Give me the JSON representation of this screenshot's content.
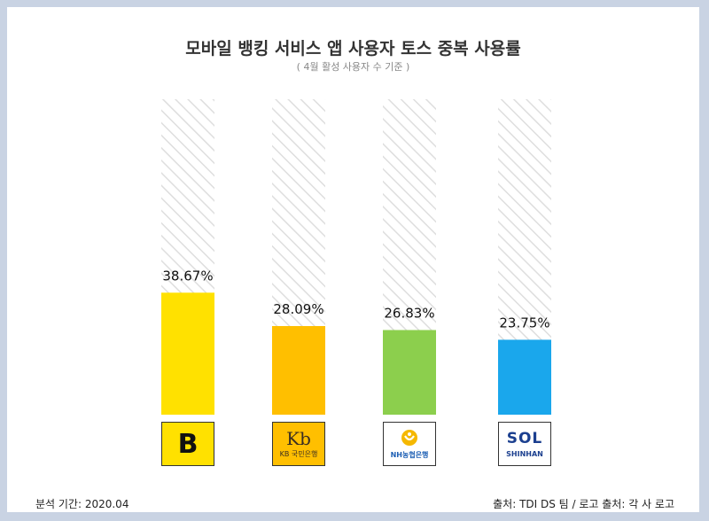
{
  "header": {
    "title": "모바일 뱅킹 서비스 앱 사용자 토스 중복 사용률",
    "subtitle": "( 4월 활성 사용자 수 기준 )"
  },
  "footer": {
    "period": "분석 기간: 2020.04",
    "source": "출처: TDI DS 팀 / 로고 출처: 각 사 로고"
  },
  "chart_data": {
    "type": "bar",
    "title": "모바일 뱅킹 서비스 앱 사용자 토스 중복 사용률",
    "subtitle": "( 4월 활성 사용자 수 기준 )",
    "categories": [
      "B",
      "KB국민은행",
      "NH농협은행",
      "SHINHAN"
    ],
    "values": [
      38.67,
      28.09,
      26.83,
      23.75
    ],
    "value_labels": [
      "38.67%",
      "28.09%",
      "26.83%",
      "23.75%"
    ],
    "unit": "%",
    "ylim": [
      0,
      100
    ],
    "bar_colors": [
      "#ffe100",
      "#ffbf00",
      "#8ccf4d",
      "#1aa7ec"
    ],
    "background_pattern": "diagonal-hatch",
    "grid": false,
    "legend": "none"
  },
  "logos": [
    {
      "name": "kbank-logo",
      "text": "B",
      "bg": "#ffe100",
      "fg": "#111111"
    },
    {
      "name": "kb-logo",
      "text": "KB 국민은행",
      "mark": "Kb",
      "bg": "#ffbf00",
      "fg": "#3a2e22"
    },
    {
      "name": "nh-logo",
      "text": "NH농협은행",
      "bg": "#ffffff",
      "fg": "#1d5fb4"
    },
    {
      "name": "shinhan-logo",
      "text": "SHINHAN",
      "mark": "SOL",
      "bg": "#ffffff",
      "fg": "#1b3f8f"
    }
  ]
}
